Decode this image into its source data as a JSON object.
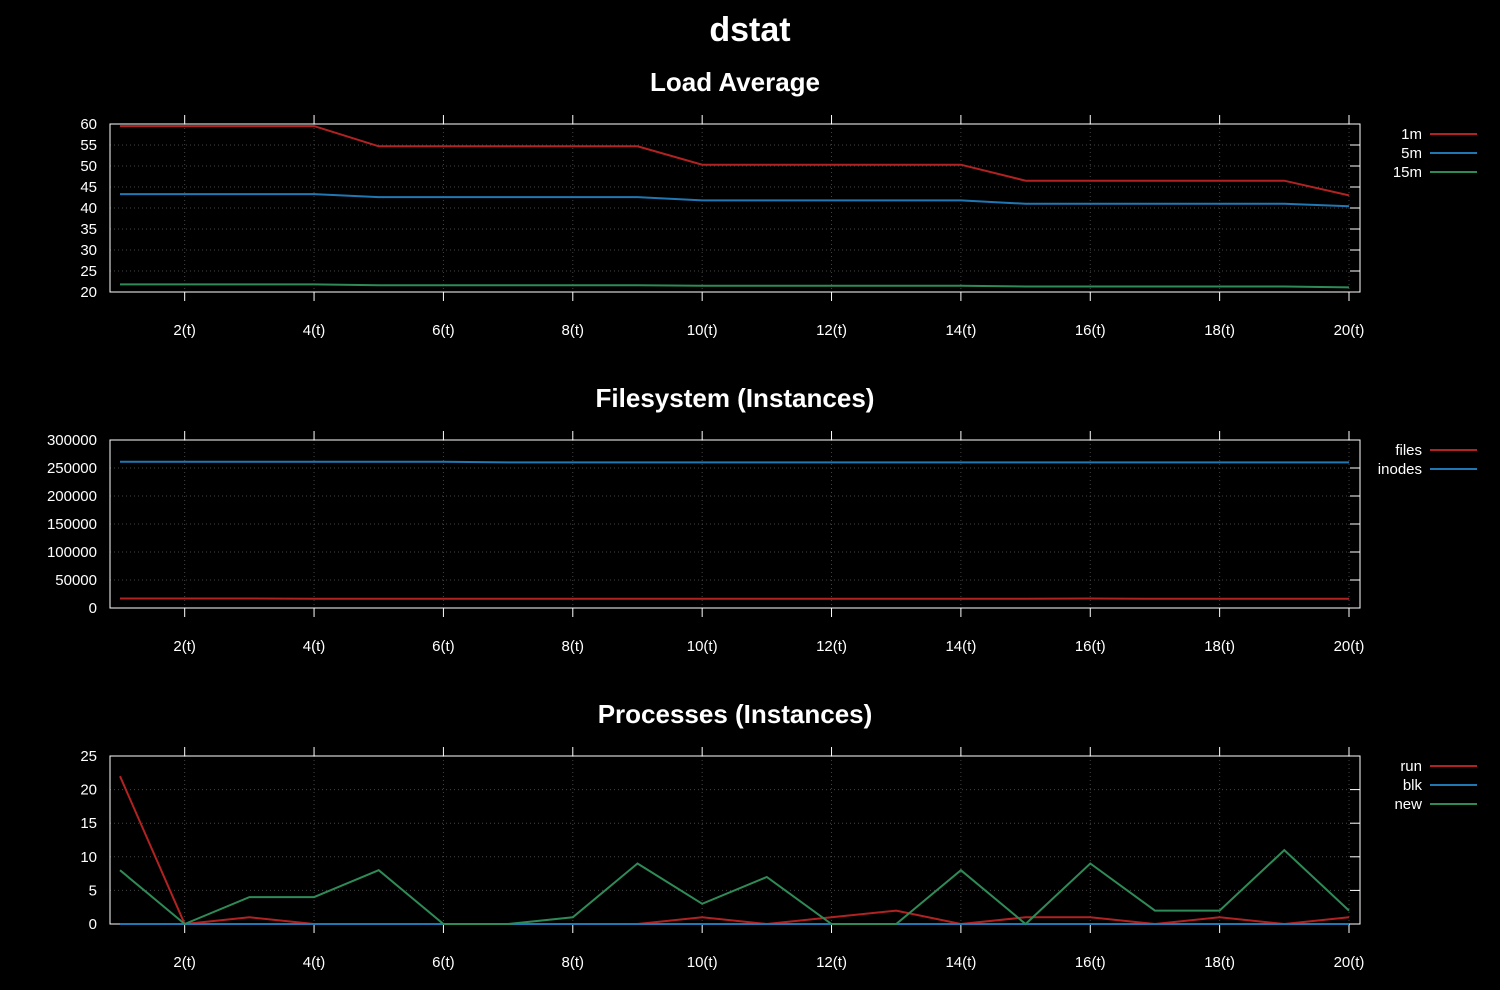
{
  "title": "dstat",
  "chart_data": [
    {
      "type": "line",
      "title": "Load Average",
      "x": [
        1,
        2,
        3,
        4,
        5,
        6,
        7,
        8,
        9,
        10,
        11,
        12,
        13,
        14,
        15,
        16,
        17,
        18,
        19,
        20
      ],
      "xticks": [
        "2(t)",
        "4(t)",
        "6(t)",
        "8(t)",
        "10(t)",
        "12(t)",
        "14(t)",
        "16(t)",
        "18(t)",
        "20(t)"
      ],
      "yticks": [
        "20",
        "25",
        "30",
        "35",
        "40",
        "45",
        "50",
        "55",
        "60"
      ],
      "ylim": [
        20,
        60
      ],
      "grid": true,
      "legend_position": "right",
      "series": [
        {
          "name": "1m",
          "color": "#b22222",
          "values": [
            59.5,
            59.5,
            59.5,
            59.5,
            54.7,
            54.7,
            54.7,
            54.7,
            54.7,
            50.3,
            50.3,
            50.3,
            50.3,
            50.3,
            46.5,
            46.5,
            46.5,
            46.5,
            46.5,
            43.0
          ]
        },
        {
          "name": "5m",
          "color": "#1f78b4",
          "values": [
            43.3,
            43.3,
            43.3,
            43.3,
            42.6,
            42.6,
            42.6,
            42.6,
            42.6,
            41.8,
            41.8,
            41.8,
            41.8,
            41.8,
            41.0,
            41.0,
            41.0,
            41.0,
            41.0,
            40.4
          ]
        },
        {
          "name": "15m",
          "color": "#2e8b57",
          "values": [
            21.8,
            21.8,
            21.8,
            21.8,
            21.6,
            21.6,
            21.6,
            21.6,
            21.6,
            21.5,
            21.5,
            21.5,
            21.5,
            21.5,
            21.3,
            21.3,
            21.3,
            21.3,
            21.3,
            21.1
          ]
        }
      ]
    },
    {
      "type": "line",
      "title": "Filesystem (Instances)",
      "x": [
        1,
        2,
        3,
        4,
        5,
        6,
        7,
        8,
        9,
        10,
        11,
        12,
        13,
        14,
        15,
        16,
        17,
        18,
        19,
        20
      ],
      "xticks": [
        "2(t)",
        "4(t)",
        "6(t)",
        "8(t)",
        "10(t)",
        "12(t)",
        "14(t)",
        "16(t)",
        "18(t)",
        "20(t)"
      ],
      "yticks": [
        "0",
        "50000",
        "100000",
        "150000",
        "200000",
        "250000",
        "300000"
      ],
      "ylim": [
        0,
        300000
      ],
      "grid": true,
      "legend_position": "right",
      "series": [
        {
          "name": "files",
          "color": "#b22222",
          "values": [
            17000,
            17000,
            17000,
            16500,
            16500,
            16500,
            16500,
            16500,
            16500,
            16500,
            16500,
            16500,
            16500,
            16500,
            16500,
            17000,
            16500,
            16500,
            16500,
            16500
          ]
        },
        {
          "name": "inodes",
          "color": "#1f78b4",
          "values": [
            261000,
            261000,
            261000,
            261000,
            261000,
            261000,
            260000,
            260000,
            260000,
            260000,
            260000,
            260000,
            260000,
            260000,
            260000,
            260000,
            260000,
            260000,
            260000,
            260000
          ]
        }
      ]
    },
    {
      "type": "line",
      "title": "Processes (Instances)",
      "x": [
        1,
        2,
        3,
        4,
        5,
        6,
        7,
        8,
        9,
        10,
        11,
        12,
        13,
        14,
        15,
        16,
        17,
        18,
        19,
        20
      ],
      "xticks": [
        "2(t)",
        "4(t)",
        "6(t)",
        "8(t)",
        "10(t)",
        "12(t)",
        "14(t)",
        "16(t)",
        "18(t)",
        "20(t)"
      ],
      "yticks": [
        "0",
        "5",
        "10",
        "15",
        "20",
        "25"
      ],
      "ylim": [
        0,
        25
      ],
      "grid": true,
      "legend_position": "right",
      "series": [
        {
          "name": "run",
          "color": "#b22222",
          "values": [
            22,
            0,
            1,
            0,
            0,
            0,
            0,
            0,
            0,
            1,
            0,
            1,
            2,
            0,
            1,
            1,
            0,
            1,
            0,
            1
          ]
        },
        {
          "name": "blk",
          "color": "#1f78b4",
          "values": [
            0,
            0,
            0,
            0,
            0,
            0,
            0,
            0,
            0,
            0,
            0,
            0,
            0,
            0,
            0,
            0,
            0,
            0,
            0,
            0
          ]
        },
        {
          "name": "new",
          "color": "#2e8b57",
          "values": [
            8,
            0,
            4,
            4,
            8,
            0,
            0,
            1,
            9,
            3,
            7,
            0,
            0,
            8,
            0,
            9,
            2,
            2,
            11,
            2
          ]
        }
      ]
    }
  ]
}
